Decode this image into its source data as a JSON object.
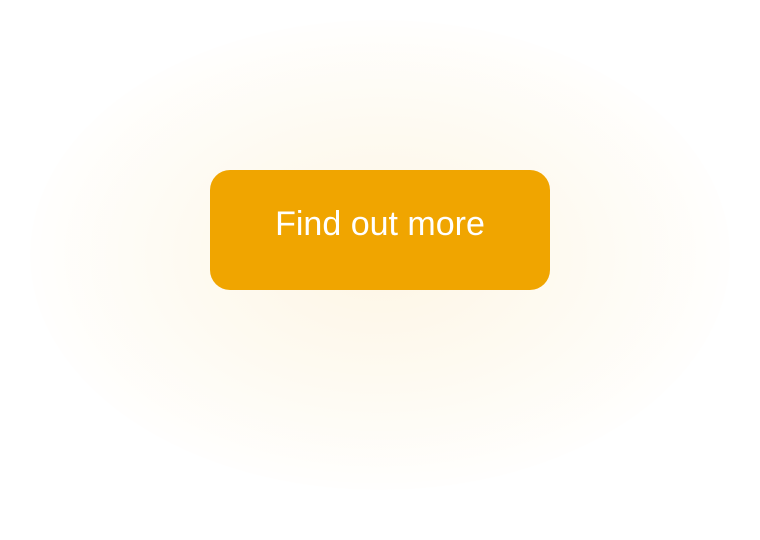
{
  "cta": {
    "label": "Find out more",
    "background_color": "#f0a500",
    "text_color": "#ffffff",
    "glow_color": "#f0a500"
  },
  "page": {
    "background_color": "#ffffff"
  }
}
